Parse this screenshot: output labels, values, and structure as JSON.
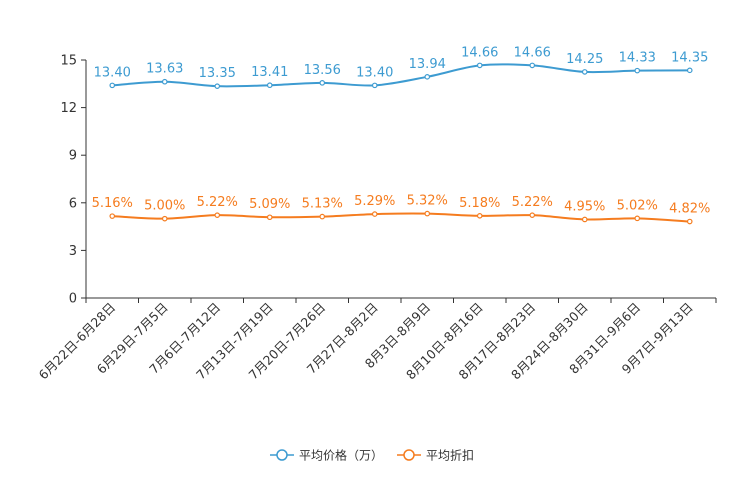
{
  "chart_data": {
    "type": "line",
    "title": "",
    "xlabel": "",
    "ylabel": "",
    "ylim": [
      0,
      15
    ],
    "yticks": [
      0,
      3,
      6,
      9,
      12,
      15
    ],
    "grid": false,
    "legend_position": "bottom-center",
    "categories": [
      "6月22日-6月28日",
      "6月29日-7月5日",
      "7月6日-7月12日",
      "7月13日-7月19日",
      "7月20日-7月26日",
      "7月27日-8月2日",
      "8月3日-8月9日",
      "8月10日-8月16日",
      "8月17日-8月23日",
      "8月24日-8月30日",
      "8月31日-9月6日",
      "9月7日-9月13日"
    ],
    "series": [
      {
        "name": "平均价格（万）",
        "color": "#3d9bd1",
        "values": [
          13.4,
          13.63,
          13.35,
          13.41,
          13.56,
          13.4,
          13.94,
          14.66,
          14.66,
          14.25,
          14.33,
          14.35
        ],
        "labels": [
          "13.40",
          "13.63",
          "13.35",
          "13.41",
          "13.56",
          "13.40",
          "13.94",
          "14.66",
          "14.66",
          "14.25",
          "14.33",
          "14.35"
        ]
      },
      {
        "name": "平均折扣",
        "color": "#f57c1f",
        "values": [
          5.16,
          5.0,
          5.22,
          5.09,
          5.13,
          5.29,
          5.32,
          5.18,
          5.22,
          4.95,
          5.02,
          4.82
        ],
        "labels": [
          "5.16%",
          "5.00%",
          "5.22%",
          "5.09%",
          "5.13%",
          "5.29%",
          "5.32%",
          "5.18%",
          "5.22%",
          "4.95%",
          "5.02%",
          "4.82%"
        ]
      }
    ]
  }
}
